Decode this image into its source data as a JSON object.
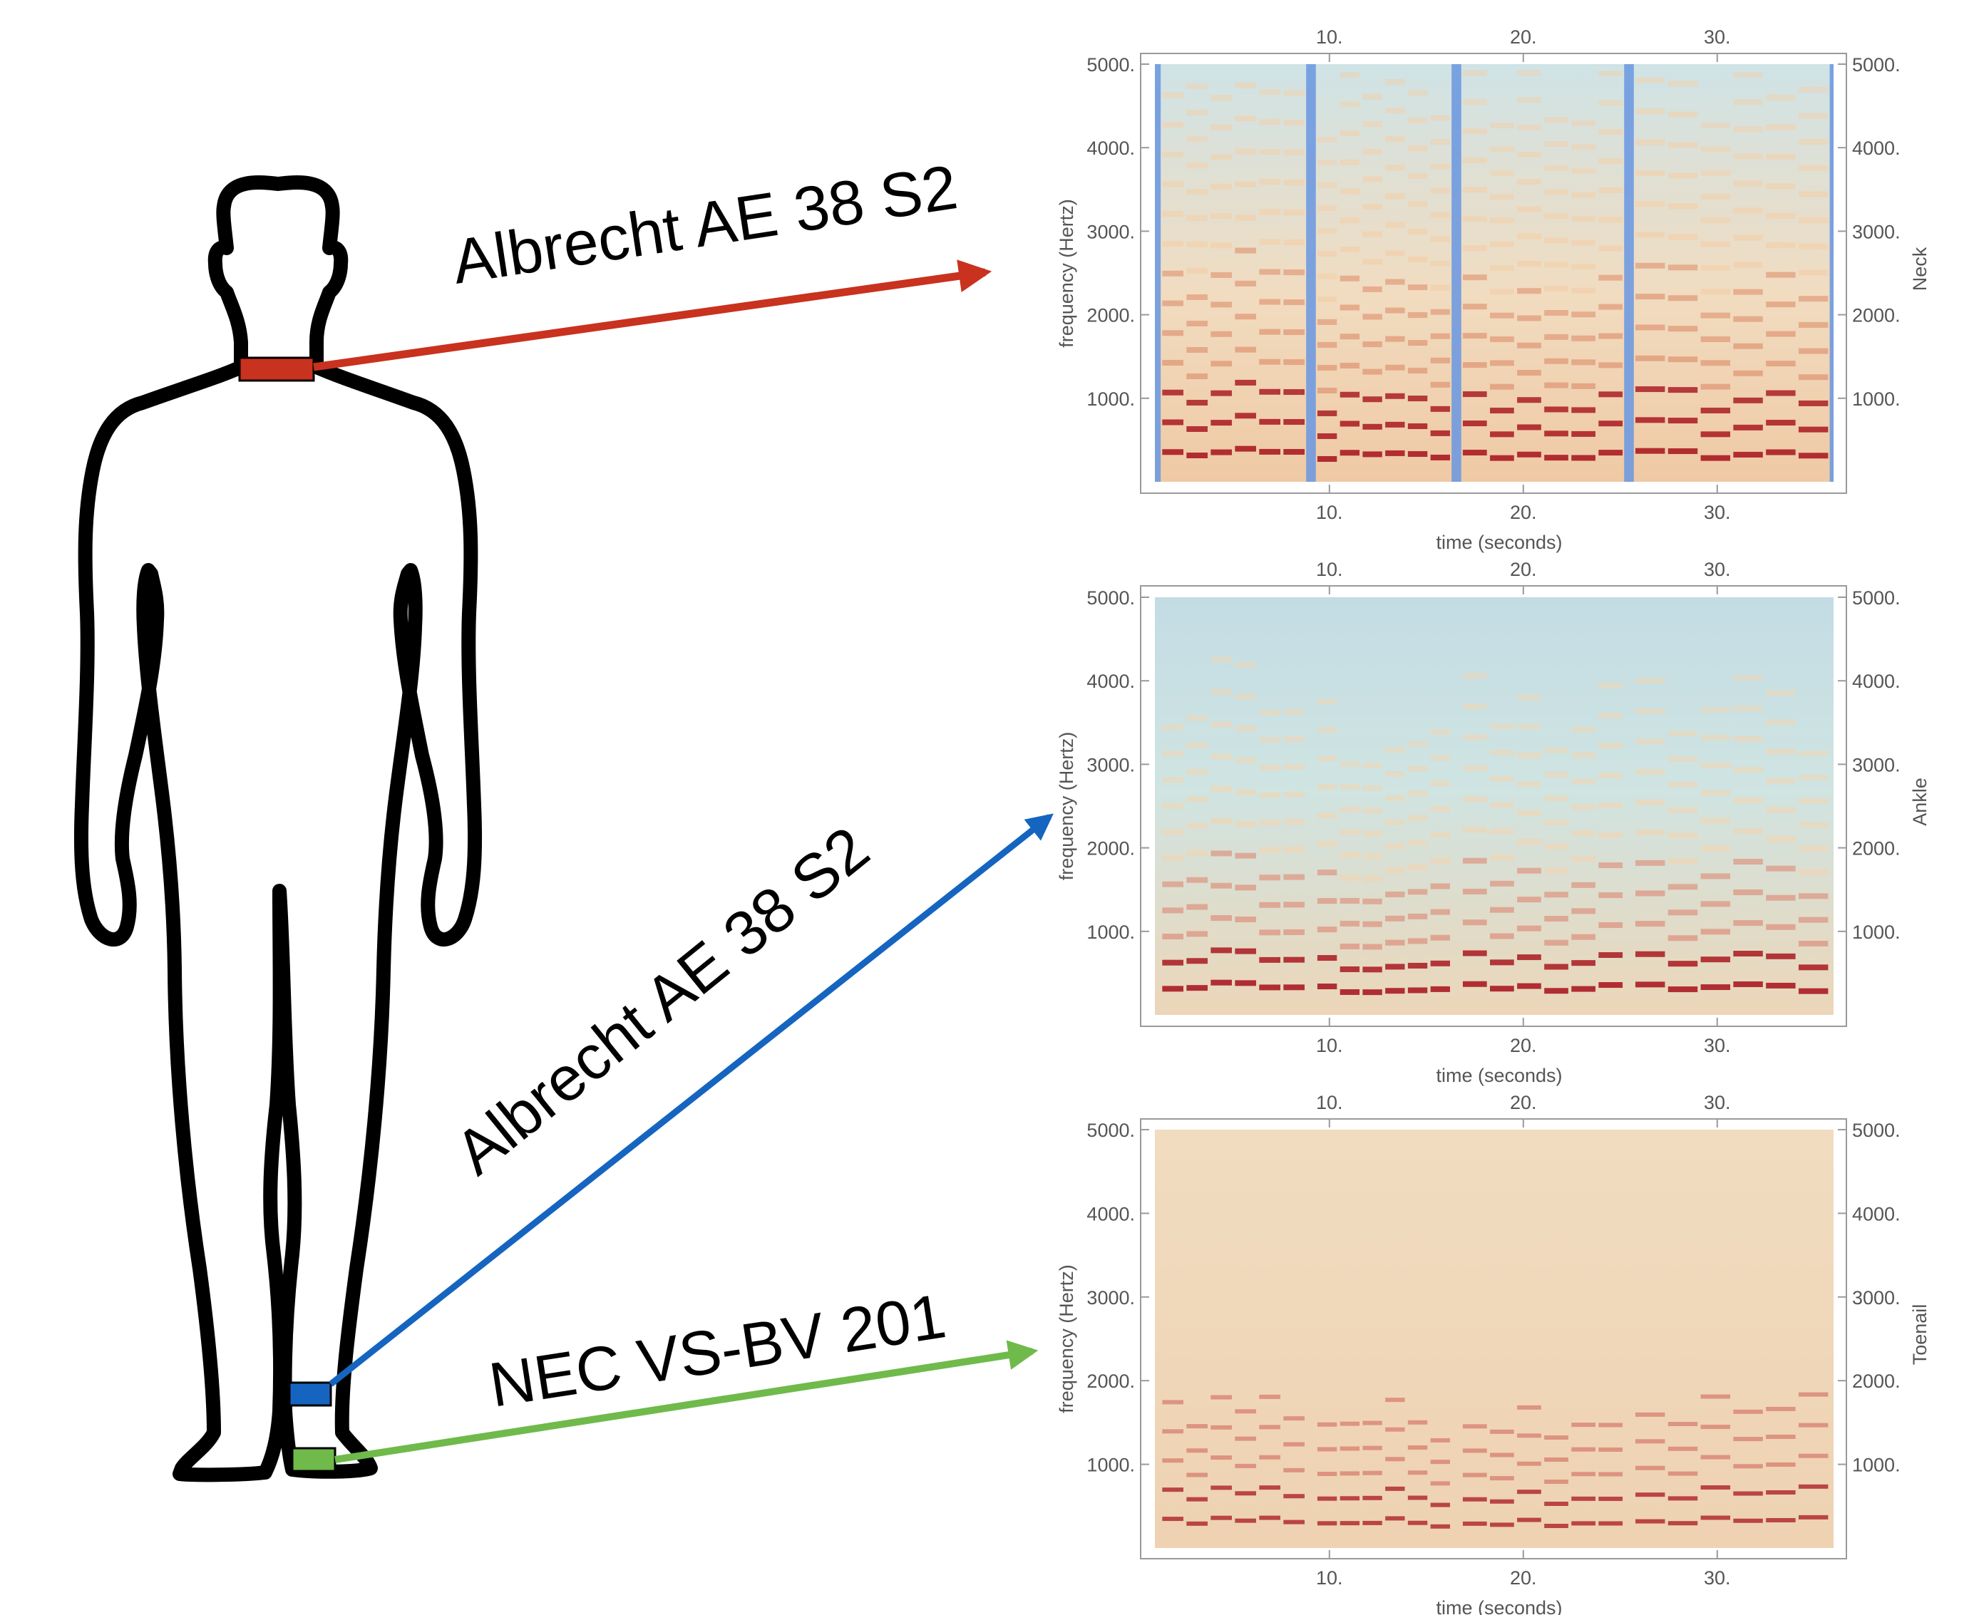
{
  "figure": {
    "sensors": [
      {
        "location": "neck",
        "label": "Albrecht AE 38 S2",
        "color": "#c8321e"
      },
      {
        "location": "ankle",
        "label": "Albrecht AE 38 S2",
        "color": "#1565c0"
      },
      {
        "location": "toenail",
        "label": "NEC VS-BV 201",
        "color": "#6fba4a"
      }
    ],
    "body_outline_color": "#000000"
  },
  "chart_data": [
    {
      "type": "heatmap",
      "panel_label": "Neck",
      "xlabel": "time (seconds)",
      "ylabel": "frequency (Hertz)",
      "xlim": [
        1,
        36
      ],
      "ylim": [
        0,
        5000
      ],
      "xticks": [
        10,
        20,
        30
      ],
      "yticks": [
        1000,
        2000,
        3000,
        4000,
        5000
      ],
      "xtick_labels": [
        "10.",
        "20.",
        "30."
      ],
      "ytick_labels": [
        "1000.",
        "2000.",
        "3000.",
        "4000.",
        "5000."
      ],
      "colors": [
        "#6f9ae0",
        "#cfe6e4",
        "#f3cfa8",
        "#e09a78",
        "#a8151e"
      ],
      "notes_words": [
        [
          1.3,
          8.8
        ],
        [
          9.3,
          16.3
        ],
        [
          16.8,
          25.2
        ],
        [
          25.7,
          35.8
        ]
      ],
      "silence_gaps": [
        [
          1.0,
          1.3
        ],
        [
          8.8,
          9.3
        ],
        [
          16.3,
          16.8
        ],
        [
          25.2,
          25.7
        ],
        [
          35.8,
          36.0
        ]
      ]
    },
    {
      "type": "heatmap",
      "panel_label": "Ankle",
      "xlabel": "time (seconds)",
      "ylabel": "frequency (Hertz)",
      "xlim": [
        1,
        36
      ],
      "ylim": [
        0,
        5000
      ],
      "xticks": [
        10,
        20,
        30
      ],
      "yticks": [
        1000,
        2000,
        3000,
        4000,
        5000
      ],
      "xtick_labels": [
        "10.",
        "20.",
        "30."
      ],
      "ytick_labels": [
        "1000.",
        "2000.",
        "3000.",
        "4000.",
        "5000."
      ],
      "colors": [
        "#a9cfe6",
        "#cfe6e4",
        "#efd6b6",
        "#dc9a86",
        "#a8151e"
      ],
      "notes_words": [
        [
          1.3,
          8.8
        ],
        [
          9.3,
          16.3
        ],
        [
          16.8,
          25.2
        ],
        [
          25.7,
          35.8
        ]
      ]
    },
    {
      "type": "heatmap",
      "panel_label": "Toenail",
      "xlabel": "time (seconds)",
      "ylabel": "frequency (Hertz)",
      "xlim": [
        1,
        36
      ],
      "ylim": [
        0,
        5000
      ],
      "xticks": [
        10,
        20,
        30
      ],
      "yticks": [
        1000,
        2000,
        3000,
        4000,
        5000
      ],
      "xtick_labels": [
        "10.",
        "20.",
        "30."
      ],
      "ytick_labels": [
        "1000.",
        "2000.",
        "3000.",
        "4000.",
        "5000."
      ],
      "colors": [
        "#f2d9bd",
        "#eecaa8",
        "#e3a283",
        "#c7453e",
        "#a8151e"
      ],
      "notes_words": [
        [
          1.3,
          8.8
        ],
        [
          9.3,
          16.3
        ],
        [
          16.8,
          25.2
        ],
        [
          25.7,
          35.8
        ]
      ]
    }
  ]
}
